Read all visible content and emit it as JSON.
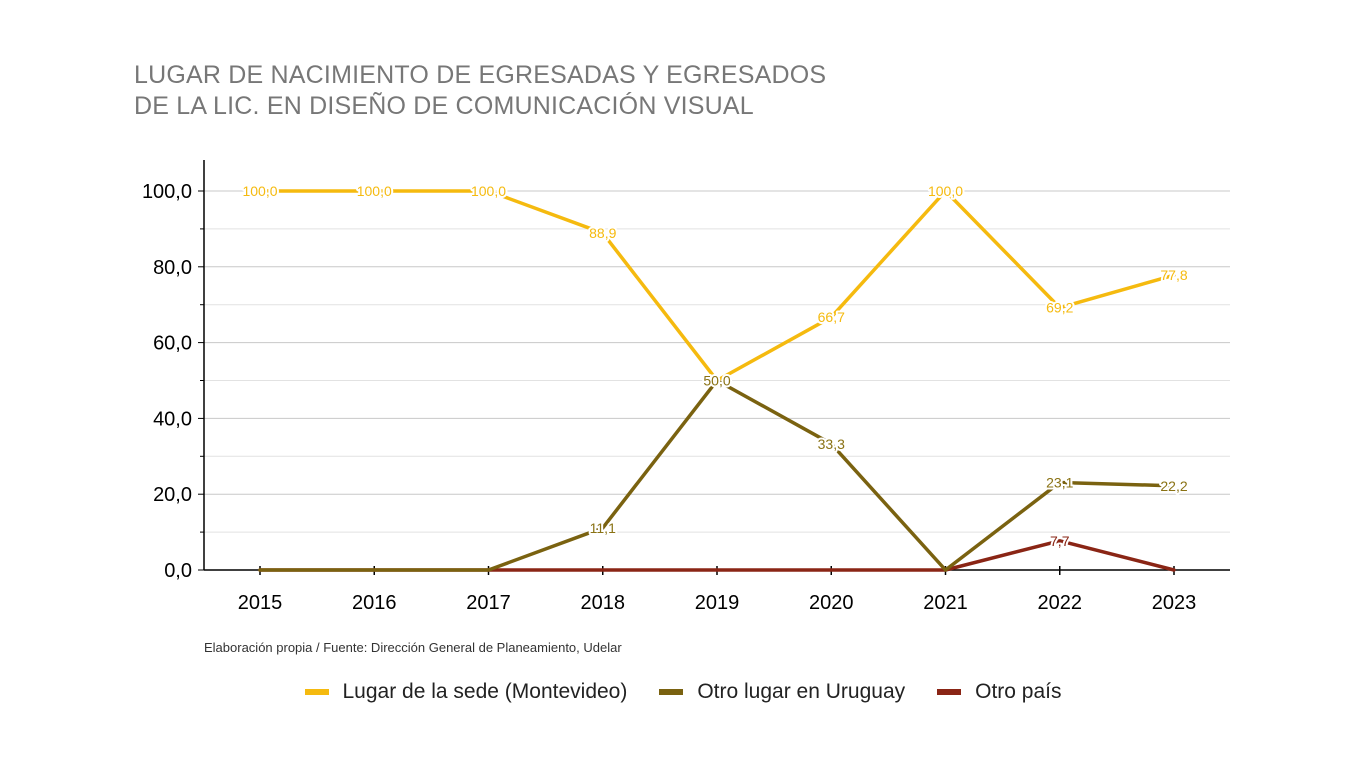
{
  "title_lines": [
    "LUGAR DE NACIMIENTO DE EGRESADAS Y EGRESADOS",
    "DE LA LIC. EN DISEÑO DE COMUNICACIÓN VISUAL"
  ],
  "source": "Elaboración propia / Fuente: Dirección General de Planeamiento, Udelar",
  "chart_data": {
    "type": "line",
    "x": [
      "2015",
      "2016",
      "2017",
      "2018",
      "2019",
      "2020",
      "2021",
      "2022",
      "2023"
    ],
    "ylim": [
      0,
      108
    ],
    "y_ticks": [
      "0,0",
      "20,0",
      "40,0",
      "60,0",
      "80,0",
      "100,0"
    ],
    "y_tick_values": [
      0,
      20,
      40,
      60,
      80,
      100
    ],
    "grid": true,
    "legend_position": "bottom",
    "series": [
      {
        "name": "Lugar de la sede (Montevideo)",
        "color": "#F5BA0F",
        "label_color": "#F5BA0F",
        "values": [
          100,
          100,
          100,
          88.9,
          50,
          66.7,
          100,
          69.2,
          77.8
        ],
        "labels": [
          "100,0",
          "100,0",
          "100,0",
          "88,9",
          "",
          "66,7",
          "100,0",
          "69,2",
          "77,8"
        ]
      },
      {
        "name": "Otro lugar en Uruguay",
        "color": "#7A6210",
        "label_color": "#8A7214",
        "values": [
          0,
          0,
          0,
          11.1,
          50,
          33.3,
          0,
          23.1,
          22.2
        ],
        "labels": [
          "",
          "",
          "",
          "11,1",
          "50,0",
          "33,3",
          "",
          "23,1",
          "22,2"
        ]
      },
      {
        "name": "Otro país",
        "color": "#8A2515",
        "label_color": "#8A2515",
        "values": [
          0,
          0,
          0,
          0,
          0,
          0,
          0,
          7.7,
          0
        ],
        "labels": [
          "",
          "",
          "",
          "",
          "",
          "",
          "",
          "7,7",
          ""
        ]
      }
    ]
  }
}
